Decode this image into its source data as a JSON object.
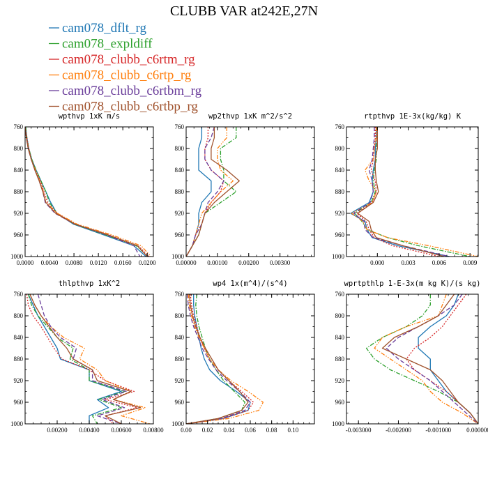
{
  "chart_data": {
    "title": "CLUBB VAR at242E,27N",
    "series_styles": [
      {
        "name": "cam078_dflt_rg",
        "color": "#1f77b4",
        "dash": "solid"
      },
      {
        "name": "cam078_expldiff",
        "color": "#2ca02c",
        "dash": "dashdot"
      },
      {
        "name": "cam078_clubb_c6rtm_rg",
        "color": "#d62728",
        "dash": "dotted"
      },
      {
        "name": "cam078_clubb_c6rtp_rg",
        "color": "#ff7f0e",
        "dash": "dashdotdot"
      },
      {
        "name": "cam078_clubb_c6rtbm_rg",
        "color": "#6a3d9a",
        "dash": "dashed"
      },
      {
        "name": "cam078_clubb_c6rtbp_rg",
        "color": "#a0522d",
        "dash": "solid"
      }
    ],
    "panels": [
      {
        "title": "wpthvp  1xK m/s",
        "type": "line",
        "xlim": [
          0,
          0.021
        ],
        "ylim": [
          760,
          1000
        ],
        "y_inverted": true,
        "xticks": [
          0,
          0.004,
          0.008,
          0.012,
          0.016,
          0.02
        ],
        "xtick_labels": [
          "0.0000",
          "0.0040",
          "0.0080",
          "0.0120",
          "0.0160",
          "0.0200"
        ],
        "yticks": [
          760,
          800,
          840,
          880,
          920,
          960,
          1000
        ],
        "ytick_labels": [
          "760",
          "800",
          "840",
          "880",
          "920",
          "960",
          "1000"
        ],
        "y": [
          760,
          780,
          800,
          820,
          840,
          860,
          880,
          900,
          920,
          940,
          960,
          980,
          1000
        ],
        "series": [
          {
            "values": [
              0.0001,
              0.0003,
              0.0006,
              0.0011,
              0.0018,
              0.0026,
              0.0034,
              0.0042,
              0.0052,
              0.0079,
              0.0129,
              0.0178,
              0.0198
            ]
          },
          {
            "values": [
              0.0001,
              0.0003,
              0.0006,
              0.0011,
              0.0018,
              0.0026,
              0.0034,
              0.004,
              0.0052,
              0.008,
              0.0132,
              0.0182,
              0.0201
            ]
          },
          {
            "values": [
              0.0,
              0.0003,
              0.0006,
              0.001,
              0.0017,
              0.0025,
              0.0031,
              0.0037,
              0.0052,
              0.0083,
              0.0137,
              0.0185,
              0.0203
            ]
          },
          {
            "values": [
              0.0,
              0.0002,
              0.0005,
              0.001,
              0.0017,
              0.0024,
              0.003,
              0.0034,
              0.0053,
              0.0085,
              0.0142,
              0.019,
              0.0206
            ]
          },
          {
            "values": [
              0.0,
              0.0002,
              0.0005,
              0.001,
              0.0016,
              0.0023,
              0.0029,
              0.0033,
              0.0049,
              0.0081,
              0.0134,
              0.0178,
              0.0188
            ]
          },
          {
            "values": [
              0.0,
              0.0002,
              0.0005,
              0.001,
              0.0016,
              0.0023,
              0.0029,
              0.0034,
              0.005,
              0.0082,
              0.0136,
              0.0184,
              0.02
            ]
          }
        ]
      },
      {
        "title": "wp2thvp  1xK m^2/s^2",
        "type": "line",
        "xlim": [
          0,
          0.0041
        ],
        "ylim": [
          760,
          1000
        ],
        "y_inverted": true,
        "xticks": [
          0,
          0.001,
          0.002,
          0.003
        ],
        "xtick_labels": [
          "0.00000",
          "0.00100",
          "0.00200",
          "0.00300"
        ],
        "yticks": [
          760,
          800,
          840,
          880,
          920,
          960,
          1000
        ],
        "ytick_labels": [
          "760",
          "800",
          "840",
          "880",
          "920",
          "960",
          "1000"
        ],
        "y": [
          760,
          780,
          800,
          820,
          840,
          860,
          880,
          900,
          920,
          940,
          960,
          980,
          1000
        ],
        "series": [
          {
            "values": [
              0.0005,
              0.0005,
              0.0004,
              0.0004,
              0.0004,
              0.0008,
              0.0008,
              0.0005,
              0.0004,
              0.0004,
              0.0003,
              0.0002,
              0.0
            ]
          },
          {
            "values": [
              0.0016,
              0.0016,
              0.0011,
              0.0011,
              0.0012,
              0.0012,
              0.0016,
              0.0011,
              0.0006,
              0.0005,
              0.0004,
              0.0002,
              0.0
            ]
          },
          {
            "values": [
              0.0007,
              0.0007,
              0.0006,
              0.0006,
              0.0008,
              0.0012,
              0.0011,
              0.0008,
              0.0006,
              0.0005,
              0.0003,
              0.0002,
              0.0
            ]
          },
          {
            "values": [
              0.0013,
              0.0013,
              0.001,
              0.001,
              0.0011,
              0.0015,
              0.0011,
              0.0008,
              0.0005,
              0.0004,
              0.0003,
              0.0002,
              0.0
            ]
          },
          {
            "values": [
              0.0009,
              0.0008,
              0.0006,
              0.0006,
              0.0008,
              0.0012,
              0.001,
              0.0007,
              0.0006,
              0.0005,
              0.0003,
              0.0002,
              0.0
            ]
          },
          {
            "values": [
              0.0009,
              0.0009,
              0.0008,
              0.0008,
              0.0013,
              0.0017,
              0.0013,
              0.0009,
              0.0006,
              0.0005,
              0.0004,
              0.0002,
              0.0
            ]
          }
        ]
      },
      {
        "title": "rtpthvp  1E-3x(kg/kg) K",
        "type": "line",
        "xlim": [
          -0.003,
          0.0098
        ],
        "ylim": [
          760,
          1000
        ],
        "y_inverted": true,
        "xticks": [
          0,
          0.003,
          0.006,
          0.009
        ],
        "xtick_labels": [
          "0.000",
          "0.003",
          "0.006",
          "0.009"
        ],
        "yticks": [
          760,
          800,
          840,
          880,
          920,
          960,
          1000
        ],
        "ytick_labels": [
          "760",
          "800",
          "840",
          "880",
          "920",
          "960",
          "1000"
        ],
        "y": [
          760,
          780,
          800,
          820,
          840,
          860,
          880,
          900,
          920,
          935,
          950,
          965,
          980,
          1000
        ],
        "series": [
          {
            "values": [
              -0.0001,
              -0.0001,
              -0.0002,
              -0.0002,
              -0.0004,
              -0.0005,
              -0.0004,
              -0.0008,
              -0.0026,
              -0.0012,
              -0.001,
              -0.0005,
              0.002,
              0.007
            ]
          },
          {
            "values": [
              0.0,
              0.0,
              -0.0001,
              -0.0001,
              -0.0003,
              -0.0004,
              -0.0002,
              -0.0006,
              -0.0022,
              -0.0015,
              -0.001,
              0.001,
              0.004,
              0.009
            ]
          },
          {
            "values": [
              -0.0002,
              -0.0002,
              -0.0003,
              -0.0004,
              -0.0006,
              -0.0002,
              -0.0001,
              -0.0005,
              -0.002,
              -0.0011,
              -0.0008,
              -0.0003,
              0.0015,
              0.006
            ]
          },
          {
            "values": [
              -0.0001,
              -0.0001,
              -0.0003,
              -0.0004,
              -0.0012,
              -0.0008,
              -0.0001,
              -0.0005,
              -0.0025,
              -0.0014,
              -0.001,
              0.001,
              0.005,
              0.0098
            ]
          },
          {
            "values": [
              -0.0003,
              -0.0003,
              -0.0004,
              -0.0005,
              -0.0008,
              -0.0005,
              -0.0004,
              -0.0007,
              -0.0023,
              -0.0013,
              -0.0012,
              -0.0004,
              0.0025,
              0.007
            ]
          },
          {
            "values": [
              0.0,
              0.0,
              0.0,
              -0.0002,
              -0.0002,
              -0.0001,
              0.0001,
              -0.0004,
              -0.0019,
              -0.0008,
              -0.0006,
              -0.0001,
              0.0025,
              0.0065
            ]
          }
        ]
      },
      {
        "title": "thlpthvp  1xK^2",
        "type": "line",
        "xlim": [
          0,
          0.008
        ],
        "ylim": [
          760,
          1000
        ],
        "y_inverted": true,
        "xticks": [
          0.002,
          0.004,
          0.006,
          0.008
        ],
        "xtick_labels": [
          "0.00200",
          "0.00400",
          "0.00600",
          "0.00800"
        ],
        "yticks": [
          760,
          800,
          840,
          880,
          920,
          960,
          1000
        ],
        "ytick_labels": [
          "760",
          "800",
          "840",
          "880",
          "920",
          "960",
          "1000"
        ],
        "y": [
          760,
          780,
          800,
          820,
          840,
          860,
          880,
          900,
          920,
          940,
          955,
          970,
          985,
          1000
        ],
        "series": [
          {
            "values": [
              0.0002,
              0.0005,
              0.0008,
              0.0012,
              0.0016,
              0.002,
              0.0022,
              0.004,
              0.004,
              0.006,
              0.0045,
              0.0052,
              0.004,
              0.004
            ]
          },
          {
            "values": [
              0.0002,
              0.0004,
              0.0008,
              0.0014,
              0.002,
              0.003,
              0.0028,
              0.004,
              0.004,
              0.0062,
              0.0046,
              0.006,
              0.0042,
              0.0045
            ]
          },
          {
            "values": [
              0.0001,
              0.0002,
              0.0005,
              0.001,
              0.0014,
              0.0018,
              0.0023,
              0.004,
              0.005,
              0.0068,
              0.005,
              0.007,
              0.005,
              0.0055
            ]
          },
          {
            "values": [
              0.0003,
              0.0006,
              0.001,
              0.0016,
              0.0024,
              0.0037,
              0.0034,
              0.0045,
              0.005,
              0.0066,
              0.0055,
              0.0075,
              0.006,
              0.0078
            ]
          },
          {
            "values": [
              0.0008,
              0.001,
              0.0012,
              0.0016,
              0.0022,
              0.0032,
              0.003,
              0.0042,
              0.0042,
              0.0063,
              0.0048,
              0.0062,
              0.0045,
              0.006
            ]
          },
          {
            "values": [
              0.0003,
              0.0006,
              0.001,
              0.0015,
              0.002,
              0.0026,
              0.003,
              0.0042,
              0.0045,
              0.0066,
              0.0055,
              0.0072,
              0.005,
              0.006
            ]
          }
        ]
      },
      {
        "title": "wp4  1x(m^4)/(s^4)",
        "type": "line",
        "xlim": [
          0,
          0.12
        ],
        "ylim": [
          760,
          1000
        ],
        "y_inverted": true,
        "xticks": [
          0,
          0.02,
          0.04,
          0.06,
          0.08,
          0.1
        ],
        "xtick_labels": [
          "0.00",
          "0.02",
          "0.04",
          "0.06",
          "0.08",
          "0.10"
        ],
        "yticks": [
          760,
          800,
          840,
          880,
          920,
          960,
          1000
        ],
        "ytick_labels": [
          "760",
          "800",
          "840",
          "880",
          "920",
          "960",
          "1000"
        ],
        "y": [
          760,
          780,
          800,
          820,
          840,
          860,
          880,
          900,
          920,
          940,
          960,
          975,
          990,
          1000
        ],
        "series": [
          {
            "values": [
              0.007,
              0.007,
              0.008,
              0.01,
              0.012,
              0.014,
              0.017,
              0.022,
              0.032,
              0.047,
              0.06,
              0.058,
              0.035,
              0.0
            ]
          },
          {
            "values": [
              0.01,
              0.009,
              0.01,
              0.012,
              0.015,
              0.018,
              0.022,
              0.028,
              0.035,
              0.045,
              0.055,
              0.052,
              0.03,
              0.0
            ]
          },
          {
            "values": [
              0.004,
              0.005,
              0.007,
              0.01,
              0.013,
              0.017,
              0.022,
              0.03,
              0.04,
              0.052,
              0.063,
              0.058,
              0.035,
              0.0
            ]
          },
          {
            "values": [
              0.002,
              0.003,
              0.005,
              0.008,
              0.012,
              0.017,
              0.022,
              0.03,
              0.042,
              0.058,
              0.072,
              0.068,
              0.04,
              0.0
            ]
          },
          {
            "values": [
              0.001,
              0.002,
              0.004,
              0.007,
              0.011,
              0.015,
              0.021,
              0.028,
              0.038,
              0.05,
              0.06,
              0.055,
              0.033,
              0.0
            ]
          },
          {
            "values": [
              0.003,
              0.004,
              0.006,
              0.009,
              0.013,
              0.018,
              0.024,
              0.03,
              0.04,
              0.05,
              0.058,
              0.052,
              0.03,
              0.0
            ]
          }
        ]
      },
      {
        "title": "wprtpthlp  1-E-3x(m kg K)/(s kg)",
        "type": "line",
        "xlim": [
          -0.0033,
          0.0
        ],
        "ylim": [
          760,
          1000
        ],
        "y_inverted": true,
        "xticks": [
          -0.003,
          -0.002,
          -0.001,
          0
        ],
        "xtick_labels": [
          "-0.003000",
          "-0.002000",
          "-0.001000",
          "0.000000"
        ],
        "yticks": [
          760,
          800,
          840,
          880,
          920,
          960,
          1000
        ],
        "ytick_labels": [
          "760",
          "800",
          "840",
          "880",
          "920",
          "960",
          "1000"
        ],
        "y": [
          760,
          780,
          800,
          820,
          840,
          860,
          880,
          900,
          920,
          940,
          960,
          980,
          1000
        ],
        "series": [
          {
            "values": [
              -0.0005,
              -0.0006,
              -0.0008,
              -0.0012,
              -0.0015,
              -0.0015,
              -0.0012,
              -0.0012,
              -0.001,
              -0.0008,
              -0.0005,
              -0.0002,
              0.0
            ]
          },
          {
            "values": [
              -0.0012,
              -0.0012,
              -0.0014,
              -0.0018,
              -0.0024,
              -0.0028,
              -0.0026,
              -0.0022,
              -0.0016,
              -0.001,
              -0.0005,
              -0.0002,
              0.0
            ]
          },
          {
            "values": [
              -0.0003,
              -0.0005,
              -0.0007,
              -0.0009,
              -0.0012,
              -0.0016,
              -0.0018,
              -0.0016,
              -0.0012,
              -0.0008,
              -0.0005,
              -0.0002,
              0.0
            ]
          },
          {
            "values": [
              -0.0008,
              -0.0009,
              -0.001,
              -0.0018,
              -0.0024,
              -0.0026,
              -0.0022,
              -0.0018,
              -0.0014,
              -0.0012,
              -0.0009,
              -0.0004,
              0.0
            ]
          },
          {
            "values": [
              -0.0004,
              -0.0006,
              -0.001,
              -0.0015,
              -0.002,
              -0.0023,
              -0.002,
              -0.0016,
              -0.0012,
              -0.0009,
              -0.0006,
              -0.0003,
              0.0
            ]
          },
          {
            "values": [
              -0.0006,
              -0.0008,
              -0.001,
              -0.0015,
              -0.0021,
              -0.0024,
              -0.0018,
              -0.0012,
              -0.0009,
              -0.0007,
              -0.0005,
              -0.0002,
              0.0
            ]
          }
        ]
      }
    ]
  }
}
